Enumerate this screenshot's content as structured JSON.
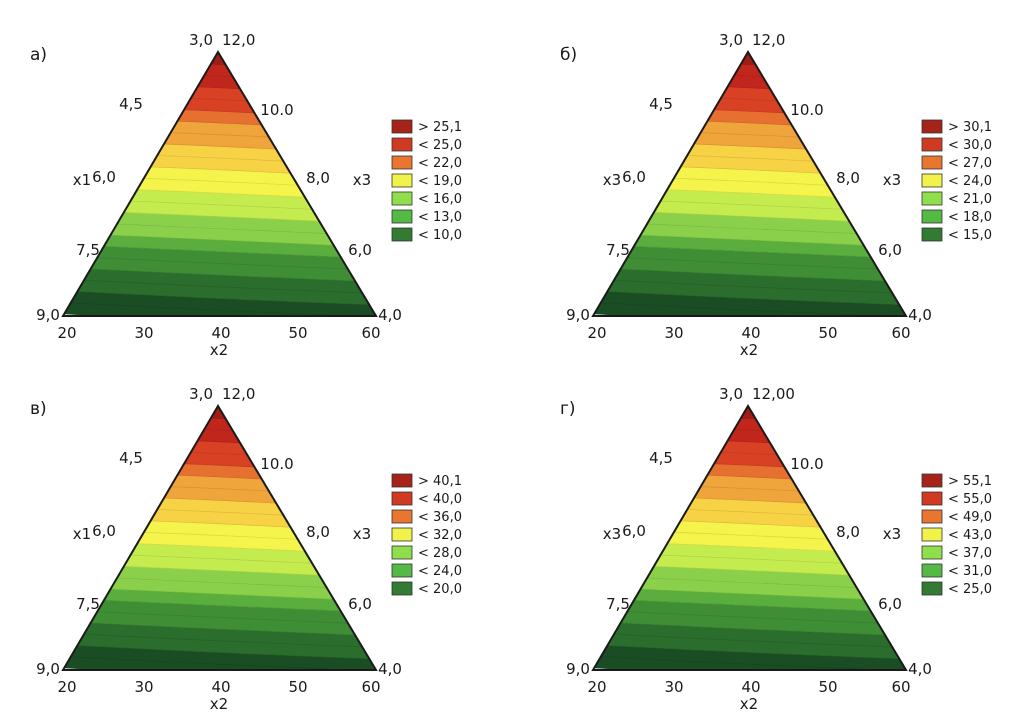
{
  "page": {
    "background": "#ffffff"
  },
  "colors": {
    "band_stops": [
      "#1b4d24",
      "#2a6d2c",
      "#3f8e35",
      "#5aae3e",
      "#8bd04a",
      "#c5ec4e",
      "#f4f44c",
      "#f6d244",
      "#f0a43c",
      "#e6702f",
      "#d84124",
      "#c1261c",
      "#9f1d16"
    ],
    "legend": [
      "#a52319",
      "#d03a23",
      "#e8762f",
      "#f2f34a",
      "#8fde4c",
      "#55b946",
      "#337a33"
    ],
    "outline": "#1a1a1a"
  },
  "chart_data": [
    {
      "type": "ternary-contour",
      "panel_label": "а)",
      "apex_labels": [
        "3,0",
        "12,0"
      ],
      "left_ticks": [
        "4,5",
        "6,0",
        "7,5",
        "9,0"
      ],
      "right_ticks": [
        "10.0",
        "8,0",
        "6,0",
        "4,0"
      ],
      "bottom_ticks": [
        "20",
        "30",
        "40",
        "50",
        "60"
      ],
      "left_axis_label": "x1",
      "right_axis_label": "x3",
      "bottom_axis_label": "x2",
      "legend": [
        "> 25,1",
        "< 25,0",
        "< 22,0",
        "< 19,0",
        "< 16,0",
        "< 13,0",
        "< 10,0"
      ]
    },
    {
      "type": "ternary-contour",
      "panel_label": "б)",
      "apex_labels": [
        "3,0",
        "12,0"
      ],
      "left_ticks": [
        "4,5",
        "6,0",
        "7,5",
        "9,0"
      ],
      "right_ticks": [
        "10.0",
        "8,0",
        "6,0",
        "4,0"
      ],
      "bottom_ticks": [
        "20",
        "30",
        "40",
        "50",
        "60"
      ],
      "left_axis_label": "x3",
      "right_axis_label": "x3",
      "bottom_axis_label": "x2",
      "legend": [
        "> 30,1",
        "< 30,0",
        "< 27,0",
        "< 24,0",
        "< 21,0",
        "< 18,0",
        "< 15,0"
      ]
    },
    {
      "type": "ternary-contour",
      "panel_label": "в)",
      "apex_labels": [
        "3,0",
        "12,0"
      ],
      "left_ticks": [
        "4,5",
        "6,0",
        "7,5",
        "9,0"
      ],
      "right_ticks": [
        "10.0",
        "8,0",
        "6,0",
        "4,0"
      ],
      "bottom_ticks": [
        "20",
        "30",
        "40",
        "50",
        "60"
      ],
      "left_axis_label": "x1",
      "right_axis_label": "x3",
      "bottom_axis_label": "x2",
      "legend": [
        "> 40,1",
        "< 40,0",
        "< 36,0",
        "< 32,0",
        "< 28,0",
        "< 24,0",
        "< 20,0"
      ]
    },
    {
      "type": "ternary-contour",
      "panel_label": "г)",
      "apex_labels": [
        "3,0",
        "12,00"
      ],
      "left_ticks": [
        "4,5",
        "6,0",
        "7,5",
        "9,0"
      ],
      "right_ticks": [
        "10.0",
        "8,0",
        "6,0",
        "4,0"
      ],
      "bottom_ticks": [
        "20",
        "30",
        "40",
        "50",
        "60"
      ],
      "left_axis_label": "x3",
      "right_axis_label": "x3",
      "bottom_axis_label": "x2",
      "legend": [
        "> 55,1",
        "< 55,0",
        "< 49,0",
        "< 43,0",
        "< 37,0",
        "< 31,0",
        "< 25,0"
      ]
    }
  ]
}
